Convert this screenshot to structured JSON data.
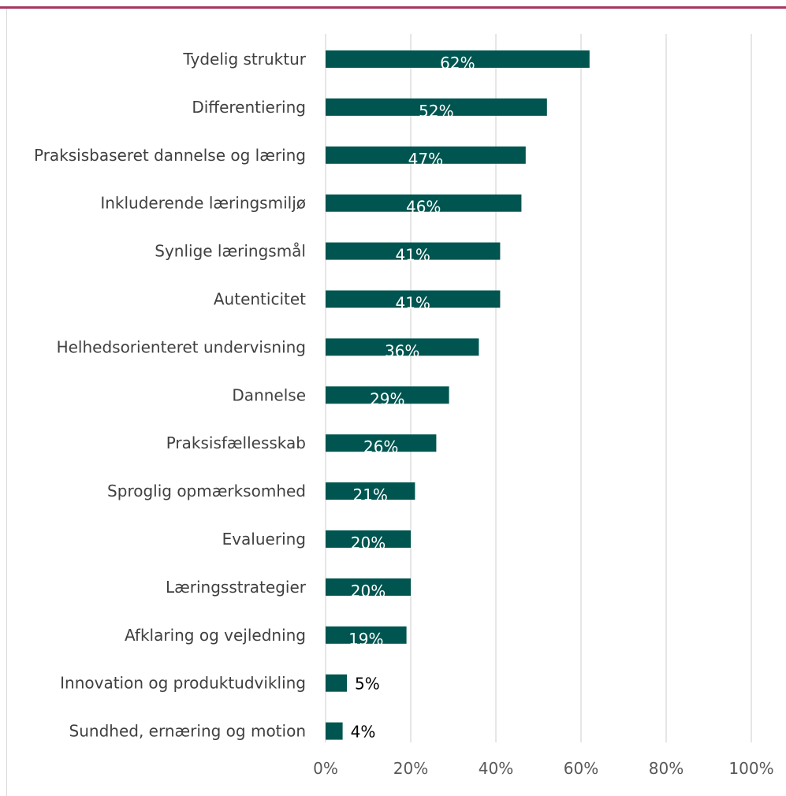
{
  "colors": {
    "bar": "#005550",
    "top_rule": "#a8375f",
    "grid": "#d9d9d9",
    "label_inside": "#ffffff",
    "label_outside": "#000000"
  },
  "chart_data": {
    "type": "bar",
    "orientation": "horizontal",
    "categories": [
      "Tydelig struktur",
      "Differentiering",
      "Praksisbaseret dannelse og læring",
      "Inkluderende læringsmiljø",
      "Synlige læringsmål",
      "Autenticitet",
      "Helhedsorienteret undervisning",
      "Dannelse",
      "Praksisfællesskab",
      "Sproglig opmærksomhed",
      "Evaluering",
      "Læringsstrategier",
      "Afklaring og vejledning",
      "Innovation og produktudvikling",
      "Sundhed, ernæring og motion"
    ],
    "values": [
      62,
      52,
      47,
      46,
      41,
      41,
      36,
      29,
      26,
      21,
      20,
      20,
      19,
      5,
      4
    ],
    "data_labels": [
      "62%",
      "52%",
      "47%",
      "46%",
      "41%",
      "41%",
      "36%",
      "29%",
      "26%",
      "21%",
      "20%",
      "20%",
      "19%",
      "5%",
      "4%"
    ],
    "xlim": [
      0,
      100
    ],
    "x_ticks": [
      0,
      20,
      40,
      60,
      80,
      100
    ],
    "x_tick_labels": [
      "0%",
      "20%",
      "40%",
      "60%",
      "80%",
      "100%"
    ],
    "grid": true,
    "legend": "none"
  }
}
